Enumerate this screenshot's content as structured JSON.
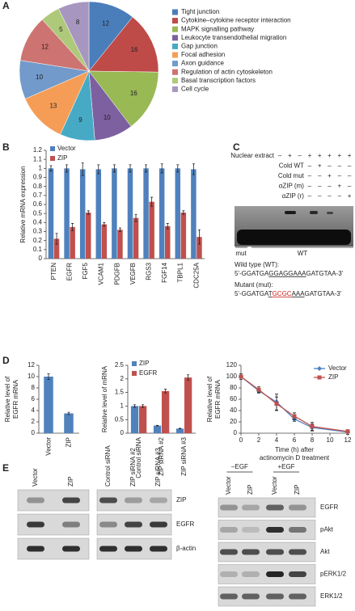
{
  "panel_labels": [
    "A",
    "B",
    "C",
    "D",
    "E"
  ],
  "chart_data": [
    {
      "type": "pie",
      "categories": [
        "Tight junction",
        "Cytokine–cytokine receptor interaction",
        "MAPK signalling pathway",
        "Leukocyte transendothelial migration",
        "Gap junction",
        "Focal adhesion",
        "Axon guidance",
        "Regulation of actin cytoskeleton",
        "Basal transcription factors",
        "Cell cycle"
      ],
      "values": [
        12,
        16,
        16,
        10,
        9,
        13,
        10,
        12,
        5,
        8
      ],
      "colors": [
        "#4a7ebb",
        "#be4b48",
        "#98b954",
        "#7d60a0",
        "#46aac5",
        "#f59d56",
        "#729aca",
        "#cd7371",
        "#afc97a",
        "#a797c0"
      ]
    },
    {
      "type": "bar",
      "ylabel": "Relative mRNA expression",
      "categories": [
        "PTEN",
        "EGFR",
        "FGF5",
        "VCAM1",
        "PDGFB",
        "VEGFB",
        "RGS3",
        "FGF14",
        "TBPL1",
        "CDC25A"
      ],
      "series": [
        {
          "name": "Vector",
          "color": "#4f81bd",
          "values": [
            1,
            1,
            0.99,
            0.99,
            1,
            1,
            1,
            1,
            1,
            0.99
          ],
          "errors": [
            0.03,
            0.04,
            0.07,
            0.05,
            0.04,
            0.04,
            0.04,
            0.05,
            0.04,
            0.06
          ]
        },
        {
          "name": "ZIP",
          "color": "#c0504d",
          "values": [
            0.22,
            0.35,
            0.51,
            0.38,
            0.32,
            0.45,
            0.63,
            0.36,
            0.51,
            0.24
          ],
          "errors": [
            0.06,
            0.04,
            0.02,
            0.02,
            0.02,
            0.04,
            0.05,
            0.03,
            0.02,
            0.08
          ]
        }
      ],
      "ylim": [
        0,
        1.2
      ],
      "yticks": [
        0,
        0.1,
        0.2,
        0.3,
        0.4,
        0.5,
        0.6,
        0.7,
        0.8,
        0.9,
        1,
        1.1,
        1.2
      ],
      "legend": "top-left"
    },
    {
      "type": "bar",
      "ylabel": [
        "Relative level of",
        "EGFR mRNA"
      ],
      "categories": [
        "Vector",
        "ZIP"
      ],
      "series": [
        {
          "color": "#4f81bd",
          "values": [
            10,
            3.5
          ],
          "errors": [
            0.5,
            0.2
          ]
        }
      ],
      "ylim": [
        0,
        12
      ],
      "yticks": [
        0,
        2,
        4,
        6,
        8,
        10,
        12
      ]
    },
    {
      "type": "bar",
      "ylabel": "Relative level of mRNA",
      "categories": [
        "Control siRNA",
        "ZIP siRNA #2",
        "ZIP siRNA #3"
      ],
      "series": [
        {
          "name": "ZIP",
          "color": "#4f81bd",
          "values": [
            1,
            0.28,
            0.17
          ],
          "errors": [
            0.05,
            0.01,
            0.01
          ]
        },
        {
          "name": "EGFR",
          "color": "#c0504d",
          "values": [
            1,
            1.55,
            2.05
          ],
          "errors": [
            0.05,
            0.07,
            0.1
          ]
        }
      ],
      "ylim": [
        0,
        2.5
      ],
      "yticks": [
        0,
        0.5,
        1,
        1.5,
        2,
        2.5
      ],
      "legend": "top-left"
    },
    {
      "type": "line",
      "ylabel": [
        "Relative level of",
        "EGFR mRNA"
      ],
      "xlabel": [
        "Time (h) after",
        "actinomycin D treatment"
      ],
      "x": [
        0,
        2,
        4,
        6,
        8,
        12
      ],
      "series": [
        {
          "name": "Vector",
          "color": "#4f81bd",
          "marker": "diamond",
          "values": [
            100,
            75,
            55,
            25,
            10,
            2
          ],
          "errors": [
            3,
            4,
            14,
            4,
            6,
            4
          ]
        },
        {
          "name": "ZIP",
          "color": "#c0504d",
          "marker": "square",
          "values": [
            100,
            77,
            52,
            30,
            12,
            3
          ],
          "errors": [
            5,
            5,
            12,
            6,
            7,
            3
          ]
        }
      ],
      "xlim": [
        0,
        12
      ],
      "xticks": [
        0,
        2,
        4,
        6,
        8,
        10,
        12
      ],
      "ylim": [
        0,
        120
      ],
      "yticks": [
        0,
        20,
        40,
        60,
        80,
        100,
        120
      ],
      "legend": "top-right"
    }
  ],
  "emsa": {
    "header_rows": [
      {
        "label": "Nuclear extract",
        "signs": [
          "–",
          "+",
          "–",
          "+",
          "+",
          "+",
          "+",
          "+"
        ]
      },
      {
        "label": "Cold WT",
        "signs": [
          "–",
          "+",
          "–",
          "–",
          "–"
        ]
      },
      {
        "label": "Cold mut",
        "signs": [
          "–",
          "–",
          "+",
          "–",
          "–"
        ]
      },
      {
        "label": "αZIP (m)",
        "signs": [
          "–",
          "–",
          "–",
          "+",
          "–"
        ]
      },
      {
        "label": "αZIP (r)",
        "signs": [
          "–",
          "–",
          "–",
          "–",
          "+"
        ]
      }
    ],
    "lane_groups": [
      "mut",
      "WT"
    ],
    "wt_label": "Wild type (WT):",
    "wt_seq": [
      "5'-GGATGA",
      "GGAGGAAA",
      "GATGTAA-3'"
    ],
    "mut_label": "Mutant (mut):",
    "mut_seq": [
      "5'-GGATGA",
      "T",
      "GCGC",
      "AAA",
      "GATGTAA-3'"
    ]
  },
  "blots_left": {
    "lanes_a": [
      "Vector",
      "ZIP"
    ],
    "lanes_b": [
      "Control siRNA",
      "ZIP siRNA #2",
      "ZIP siRNA #3"
    ],
    "rows": [
      "ZIP",
      "EGFR",
      "β-actin"
    ]
  },
  "blots_right": {
    "conditions": [
      "–EGF",
      "+EGF"
    ],
    "lanes": [
      "Vector",
      "ZIP",
      "Vector",
      "ZIP"
    ],
    "rows": [
      "EGFR",
      "pAkt",
      "Akt",
      "pERK1/2",
      "ERK1/2"
    ]
  }
}
